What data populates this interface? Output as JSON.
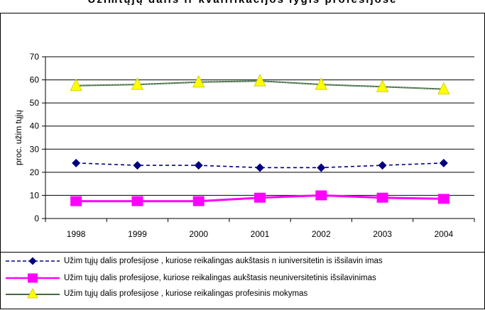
{
  "chart_data": {
    "type": "line",
    "title": "",
    "ylabel": "proc. užim tųjų",
    "xlabel": "",
    "ylim": [
      0,
      70
    ],
    "yticks": [
      0,
      10,
      20,
      30,
      40,
      50,
      60,
      70
    ],
    "categories": [
      "1998",
      "1999",
      "2000",
      "2001",
      "2002",
      "2003",
      "2004"
    ],
    "grid": true,
    "legend_position": "bottom",
    "series": [
      {
        "name": "Užim tųjų dalis profesijose , kuriose reikalingas aukštasis n iuniversitetin is išsilavin imas",
        "values": [
          24,
          23,
          23,
          22,
          22,
          23,
          24
        ],
        "color": "#000080",
        "marker": "diamond",
        "line": "dashed"
      },
      {
        "name": "Užim tųjų dalis profesijose, kuriose reikalingas aukštasis neuniversitetinis išsilavinimas",
        "values": [
          7.5,
          7.5,
          7.5,
          9,
          10,
          9,
          8.5
        ],
        "color": "#ff00ff",
        "marker": "square",
        "line": "solid"
      },
      {
        "name": "Užim tųjų dalis profesijose , kuriose reikalingas profesinis mokymas",
        "values": [
          57.5,
          58,
          59,
          59.5,
          58,
          57,
          56
        ],
        "color": "#ffff00",
        "marker": "triangle",
        "line": "solid"
      }
    ]
  }
}
